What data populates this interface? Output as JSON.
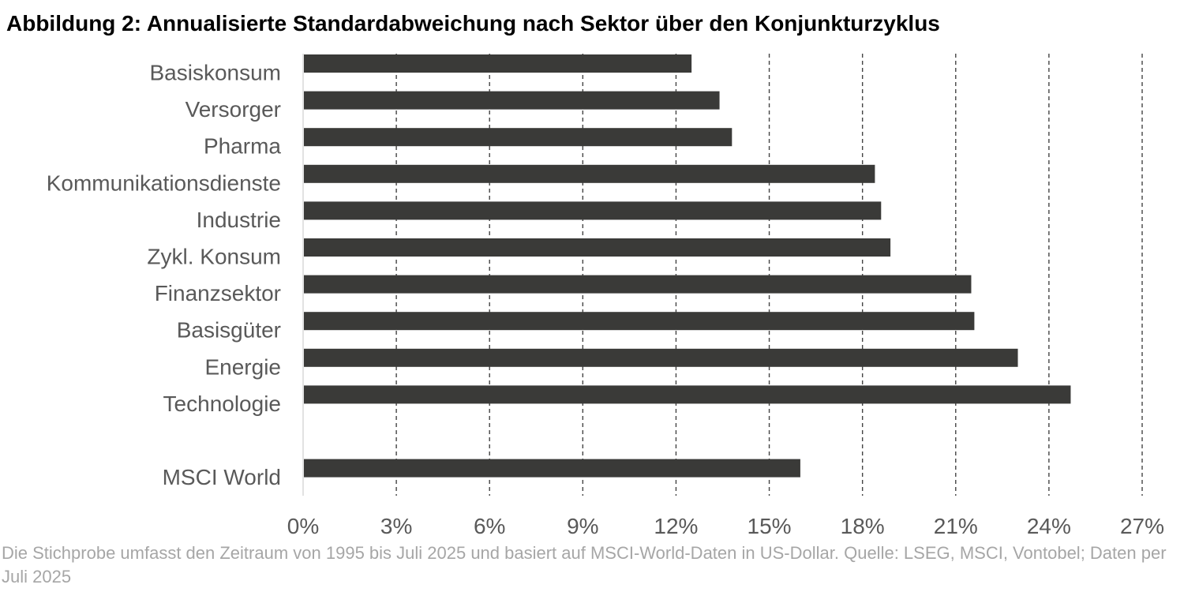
{
  "title": "Abbildung 2: Annualisierte Standardabweichung nach Sektor über den Konjunkturzyklus",
  "note": "Die Stichprobe umfasst den Zeitraum von 1995 bis Juli 2025 und basiert auf MSCI-World-Daten in US-Dollar. Quelle: LSEG, MSCI, Vontobel; Daten per Juli 2025",
  "colors": {
    "bar": "#3a3a38",
    "label": "#595959",
    "grid": "#444444",
    "axis": "#d9d9d9",
    "note": "#a6a6a6"
  },
  "chart_data": {
    "type": "bar",
    "orientation": "horizontal",
    "categories": [
      "Basiskonsum",
      "Versorger",
      "Pharma",
      "Kommunikationsdienste",
      "Industrie",
      "Zykl. Konsum",
      "Finanzsektor",
      "Basisgüter",
      "Energie",
      "Technologie",
      "",
      "MSCI World"
    ],
    "values": [
      12.5,
      13.4,
      13.8,
      18.4,
      18.6,
      18.9,
      21.5,
      21.6,
      23.0,
      24.7,
      null,
      16.0
    ],
    "xlim": [
      0,
      27
    ],
    "xticks": [
      0,
      3,
      6,
      9,
      12,
      15,
      18,
      21,
      24,
      27
    ],
    "tick_labels": [
      "0%",
      "3%",
      "6%",
      "9%",
      "12%",
      "15%",
      "18%",
      "21%",
      "24%",
      "27%"
    ],
    "grid": "vertical dashed",
    "legend": "none"
  }
}
